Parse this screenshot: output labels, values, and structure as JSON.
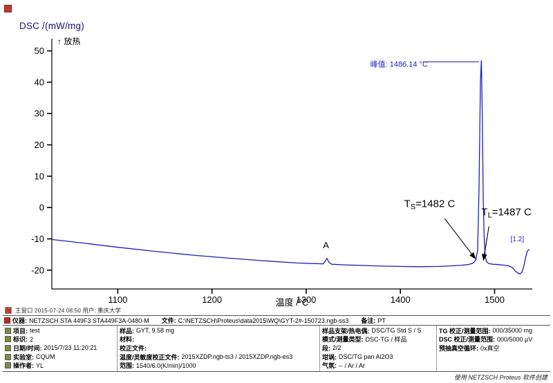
{
  "window": {
    "status_line": "主窗口   2015-07-24 08:50   用户: 重庆大学",
    "credit": "使用 NETZSCH Proteus 软件创建"
  },
  "chart_data": {
    "type": "line",
    "title": "",
    "ylabel": "DSC /(mW/mg)",
    "xlabel": "温度 /°C",
    "exo_label": "↑ 放热",
    "xlim": [
      1030,
      1540
    ],
    "ylim": [
      -26,
      53
    ],
    "x_ticks": [
      1100,
      1200,
      1300,
      1400,
      1500
    ],
    "y_ticks": [
      50,
      40,
      30,
      20,
      10,
      0,
      -10,
      -20
    ],
    "grid": false,
    "legend": "none",
    "peak_temperature_c": 1486.14,
    "solidus_c": 1482,
    "liquidus_c": 1487,
    "series": [
      {
        "name": "DSC",
        "color": "#1d1dbe",
        "points": [
          [
            1030,
            -10.2
          ],
          [
            1070,
            -11.6
          ],
          [
            1100,
            -12.7
          ],
          [
            1140,
            -14.0
          ],
          [
            1180,
            -15.2
          ],
          [
            1220,
            -16.2
          ],
          [
            1260,
            -17.1
          ],
          [
            1290,
            -17.7
          ],
          [
            1310,
            -17.9
          ],
          [
            1318,
            -18.0
          ],
          [
            1320,
            -17.2
          ],
          [
            1322,
            -16.2
          ],
          [
            1324,
            -17.4
          ],
          [
            1327,
            -18.1
          ],
          [
            1340,
            -18.3
          ],
          [
            1360,
            -18.5
          ],
          [
            1380,
            -18.7
          ],
          [
            1400,
            -18.8
          ],
          [
            1420,
            -18.9
          ],
          [
            1440,
            -18.8
          ],
          [
            1455,
            -18.6
          ],
          [
            1465,
            -18.4
          ],
          [
            1472,
            -18.2
          ],
          [
            1477,
            -17.8
          ],
          [
            1480,
            -16.8
          ],
          [
            1482,
            -13.5
          ],
          [
            1483.5,
            6
          ],
          [
            1485,
            40
          ],
          [
            1486,
            47
          ],
          [
            1487,
            28
          ],
          [
            1488,
            2
          ],
          [
            1489,
            -10
          ],
          [
            1490,
            -15.5
          ],
          [
            1491.5,
            -17.3
          ],
          [
            1494,
            -17.9
          ],
          [
            1498,
            -18.1
          ],
          [
            1504,
            -18.2
          ],
          [
            1510,
            -18.4
          ],
          [
            1515,
            -18.6
          ],
          [
            1519,
            -19.2
          ],
          [
            1522,
            -20.3
          ],
          [
            1525,
            -21.0
          ],
          [
            1527,
            -21.2
          ],
          [
            1529,
            -20.6
          ],
          [
            1531,
            -18.8
          ],
          [
            1533,
            -15.8
          ],
          [
            1535,
            -13.8
          ],
          [
            1537,
            -13.4
          ]
        ]
      }
    ],
    "annotations": [
      {
        "name": "peak-value-label",
        "text": "峰值: 1486.14 °C",
        "x": 1368,
        "y": 45.0,
        "anchor": "start",
        "size": 11,
        "family": "sans",
        "color": "#1d1dbe",
        "leader": {
          "x1": 1424,
          "y1": 46.5,
          "x2": 1483.5,
          "y2": 46.5
        }
      },
      {
        "name": "point-a-label",
        "text": "A",
        "x": 1321,
        "y": -13.0,
        "anchor": "middle",
        "size": 13,
        "family": "serif",
        "color": "#000000"
      },
      {
        "name": "solidus-temperature-label",
        "text": "T",
        "sub": "S",
        "post": "=1482 C",
        "x": 1404,
        "y": 0.2,
        "anchor": "start",
        "size": 15,
        "family": "serif",
        "color": "#000000",
        "arrow": {
          "x1": 1447,
          "y1": -3.5,
          "x2": 1479.5,
          "y2": -16.3
        }
      },
      {
        "name": "liquidus-temperature-label",
        "text": "T",
        "sub": "L",
        "post": "=1487 C",
        "x": 1486,
        "y": -2.5,
        "anchor": "start",
        "size": 15,
        "family": "serif",
        "color": "#000000",
        "arrow": {
          "x1": 1494,
          "y1": -6.0,
          "x2": 1488.2,
          "y2": -16.8
        }
      },
      {
        "name": "segment-marker-label",
        "text": "[1.2]",
        "x": 1517,
        "y": -10.8,
        "anchor": "start",
        "size": 10,
        "family": "sans",
        "color": "#1d1dbe"
      }
    ]
  },
  "info_table": {
    "instrument_row": [
      {
        "label": "仪器:",
        "value": "NETZSCH STA 449F3 STA449F3A-0480-M"
      },
      {
        "label": "文件:",
        "value": "C:\\NETZSCH\\Proteus\\data2015\\WQ\\GYT-2#-150723.ngb-ss3"
      },
      {
        "label": "备注:",
        "value": "PT"
      }
    ],
    "columns": [
      {
        "rows": [
          {
            "label": "项目:",
            "value": "test"
          },
          {
            "label": "标识:",
            "value": "2"
          },
          {
            "label": "日期/时间:",
            "value": "2015/7/23 11:20:21"
          },
          {
            "label": "实验室:",
            "value": "CQUM"
          },
          {
            "label": "操作者:",
            "value": "YL"
          }
        ]
      },
      {
        "rows": [
          {
            "label": "样品:",
            "value": "GYT, 9.58 mg"
          },
          {
            "label": "材料:",
            "value": ""
          },
          {
            "label": "校正文件:",
            "value": ""
          },
          {
            "label": "温度/灵敏度校正文件:",
            "value": "2015XZDP.ngb-ts3 / 2015XZDP.ngb-es3"
          },
          {
            "label": "范围:",
            "value": "1540/6.0(K/min)/1000"
          }
        ]
      },
      {
        "rows": [
          {
            "label": "样品支架/热电偶:",
            "value": "DSC/TG Std S / S"
          },
          {
            "label": "模式/测量类型:",
            "value": "DSC-TG / 样品"
          },
          {
            "label": "段:",
            "value": "2/2"
          },
          {
            "label": "坩埚:",
            "value": "DSC/TG pan Al2O3"
          },
          {
            "label": "气氛:",
            "value": "-- / Ar / Ar"
          }
        ]
      },
      {
        "rows": [
          {
            "label": "TG 校正/测量范围:",
            "value": "000/35000 mg"
          },
          {
            "label": "DSC 校正/测量范围:",
            "value": "000/5000 µV"
          },
          {
            "label": "预抽真空循环:",
            "value": "0x真空"
          },
          {
            "label": "",
            "value": ""
          },
          {
            "label": "",
            "value": ""
          }
        ]
      }
    ]
  }
}
